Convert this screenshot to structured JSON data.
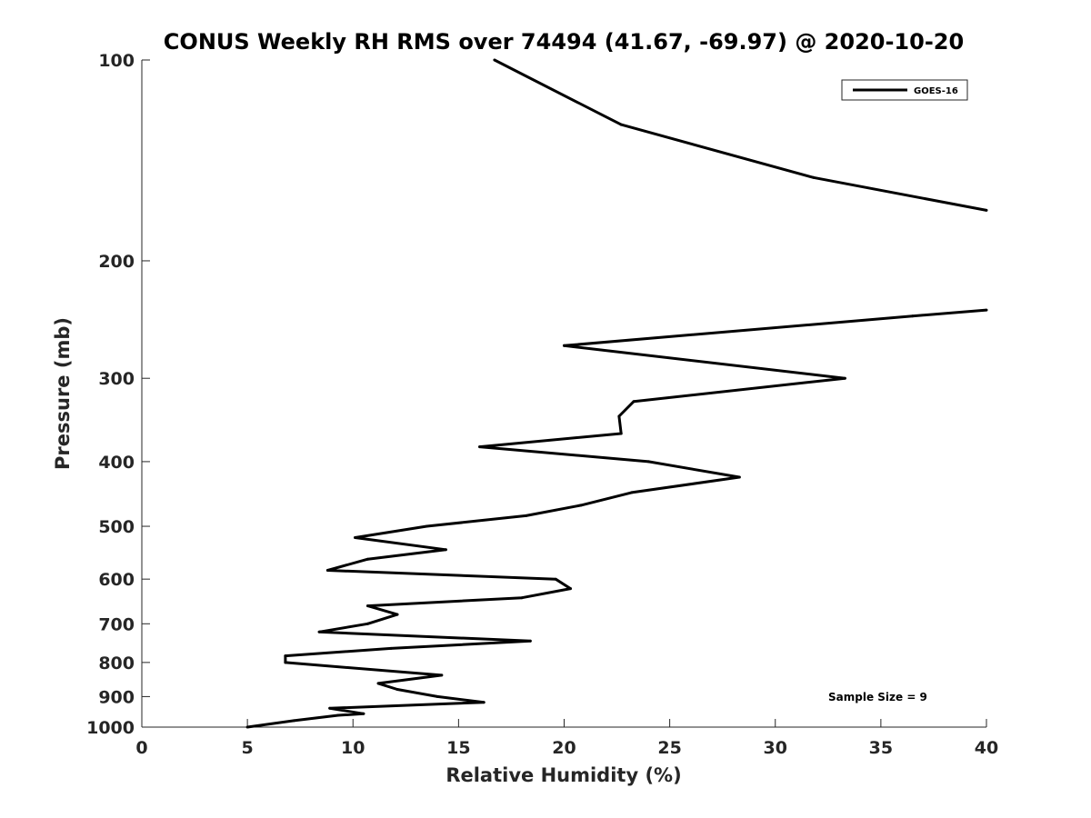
{
  "chart_data": {
    "type": "line",
    "title": "CONUS Weekly RH RMS over 74494 (41.67, -69.97) @ 2020-10-20",
    "xlabel": "Relative Humidity (%)",
    "ylabel": "Pressure (mb)",
    "xlim": [
      0,
      40
    ],
    "ylim": [
      100,
      1000
    ],
    "yscale": "log-reversed",
    "grid": false,
    "legend_position": "top-right",
    "x_ticks": [
      0,
      5,
      10,
      15,
      20,
      25,
      30,
      35,
      40
    ],
    "x_tick_labels": [
      "0",
      "5",
      "10",
      "15",
      "20",
      "25",
      "30",
      "35",
      "40"
    ],
    "y_ticks": [
      100,
      200,
      300,
      400,
      500,
      600,
      700,
      800,
      900,
      1000
    ],
    "y_tick_labels": [
      "100",
      "200",
      "300",
      "400",
      "500",
      "600",
      "700",
      "800",
      "900",
      "1000"
    ],
    "annotation": "Sample Size = 9",
    "color": "#000000",
    "series": [
      {
        "name": "GOES-16",
        "segments": [
          [
            {
              "x": 16.7,
              "p": 100
            },
            {
              "x": 22.7,
              "p": 125
            },
            {
              "x": 31.8,
              "p": 150
            },
            {
              "x": 40.0,
              "p": 168
            }
          ],
          [
            {
              "x": 40.0,
              "p": 237
            },
            {
              "x": 36.5,
              "p": 242
            },
            {
              "x": 20.0,
              "p": 268
            },
            {
              "x": 33.3,
              "p": 300
            },
            {
              "x": 23.3,
              "p": 325
            },
            {
              "x": 22.6,
              "p": 342
            },
            {
              "x": 22.7,
              "p": 363
            },
            {
              "x": 16.0,
              "p": 380
            },
            {
              "x": 24.0,
              "p": 400
            },
            {
              "x": 28.3,
              "p": 422
            },
            {
              "x": 23.2,
              "p": 445
            },
            {
              "x": 20.8,
              "p": 465
            },
            {
              "x": 18.2,
              "p": 482
            },
            {
              "x": 13.5,
              "p": 500
            },
            {
              "x": 10.1,
              "p": 520
            },
            {
              "x": 14.4,
              "p": 542
            },
            {
              "x": 10.7,
              "p": 560
            },
            {
              "x": 8.8,
              "p": 582
            },
            {
              "x": 19.6,
              "p": 600
            },
            {
              "x": 20.3,
              "p": 620
            },
            {
              "x": 18.0,
              "p": 640
            },
            {
              "x": 10.7,
              "p": 658
            },
            {
              "x": 12.1,
              "p": 678
            },
            {
              "x": 10.7,
              "p": 700
            },
            {
              "x": 8.4,
              "p": 720
            },
            {
              "x": 18.4,
              "p": 743
            },
            {
              "x": 11.8,
              "p": 762
            },
            {
              "x": 6.8,
              "p": 782
            },
            {
              "x": 6.8,
              "p": 800
            },
            {
              "x": 14.2,
              "p": 836
            },
            {
              "x": 11.2,
              "p": 860
            },
            {
              "x": 12.1,
              "p": 878
            },
            {
              "x": 14.0,
              "p": 900
            },
            {
              "x": 16.2,
              "p": 918
            },
            {
              "x": 8.9,
              "p": 937
            },
            {
              "x": 10.5,
              "p": 955
            },
            {
              "x": 9.3,
              "p": 960
            },
            {
              "x": 7.2,
              "p": 978
            },
            {
              "x": 5.0,
              "p": 1000
            }
          ]
        ]
      }
    ]
  }
}
